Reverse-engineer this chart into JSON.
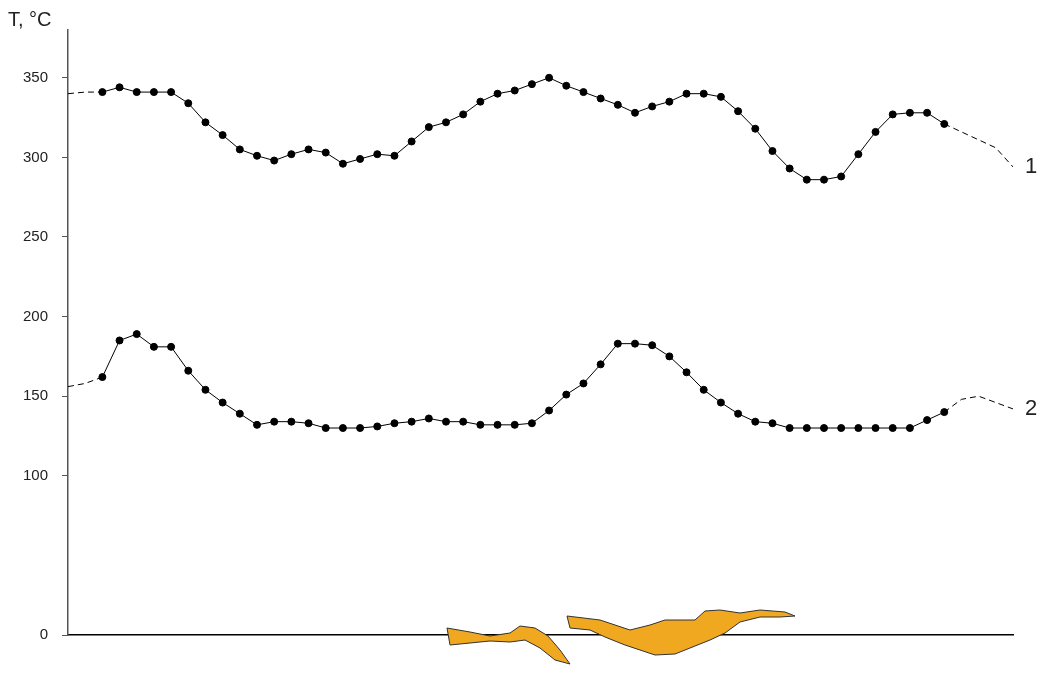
{
  "chart_data": {
    "type": "line",
    "ylabel": "T, °C",
    "categories": [
      null,
      null,
      null,
      null,
      null,
      null,
      null,
      null,
      null,
      null,
      null,
      null,
      null,
      null,
      null,
      null,
      null,
      null,
      null,
      null,
      null,
      null,
      null,
      null,
      null,
      null,
      null,
      null,
      null,
      null,
      null,
      null,
      null,
      null,
      null,
      null,
      null,
      null,
      null,
      null,
      null,
      null,
      null,
      null,
      null,
      null,
      null,
      null,
      null,
      null,
      null,
      null,
      null,
      null,
      null,
      null
    ],
    "ylim": [
      0,
      380
    ],
    "yticks": [
      0,
      100,
      150,
      200,
      250,
      300,
      350
    ],
    "tick_labels": "y",
    "grid": false,
    "legend": "right",
    "marker": "circle",
    "series": [
      {
        "name": "1",
        "color": "#000000",
        "values": [
          null,
          null,
          341,
          344,
          341,
          341,
          341,
          334,
          322,
          314,
          305,
          301,
          298,
          302,
          305,
          303,
          296,
          299,
          302,
          301,
          310,
          319,
          322,
          327,
          335,
          340,
          342,
          346,
          350,
          345,
          341,
          337,
          333,
          328,
          332,
          335,
          340,
          340,
          338,
          329,
          318,
          304,
          293,
          286,
          286,
          288,
          302,
          316,
          327,
          328,
          328,
          321,
          null,
          null,
          null,
          null
        ]
      },
      {
        "color": "#000000",
        "line_style": "dashed",
        "marker": "none",
        "values": [
          340,
          341,
          341,
          null,
          null,
          null,
          null,
          null,
          null,
          null,
          null,
          null,
          null,
          null,
          null,
          null,
          null,
          null,
          null,
          null,
          null,
          null,
          null,
          null,
          null,
          null,
          null,
          null,
          null,
          null,
          null,
          null,
          null,
          null,
          null,
          null,
          null,
          null,
          null,
          null,
          null,
          null,
          null,
          null,
          null,
          null,
          null,
          null,
          null,
          null,
          null,
          null,
          null,
          null,
          null,
          null
        ]
      },
      {
        "color": "#000000",
        "line_style": "dashed",
        "marker": "none",
        "values": [
          null,
          null,
          null,
          null,
          null,
          null,
          null,
          null,
          null,
          null,
          null,
          null,
          null,
          null,
          null,
          null,
          null,
          null,
          null,
          null,
          null,
          null,
          null,
          null,
          null,
          null,
          null,
          null,
          null,
          null,
          null,
          null,
          null,
          null,
          null,
          null,
          null,
          null,
          null,
          null,
          null,
          null,
          null,
          null,
          null,
          null,
          null,
          null,
          null,
          null,
          null,
          321,
          null,
          null,
          306,
          294
        ]
      },
      {
        "name": "2",
        "color": "#000000",
        "values": [
          null,
          null,
          162,
          185,
          189,
          181,
          181,
          166,
          154,
          146,
          139,
          132,
          134,
          134,
          133,
          130,
          130,
          130,
          131,
          133,
          134,
          136,
          134,
          134,
          132,
          132,
          132,
          133,
          141,
          151,
          158,
          170,
          183,
          183,
          182,
          175,
          165,
          154,
          146,
          139,
          134,
          133,
          130,
          130,
          130,
          130,
          130,
          130,
          130,
          130,
          135,
          140,
          null,
          null,
          null,
          null
        ]
      },
      {
        "color": "#000000",
        "line_style": "dashed",
        "marker": "none",
        "values": [
          156,
          158,
          162,
          null,
          null,
          null,
          null,
          null,
          null,
          null,
          null,
          null,
          null,
          null,
          null,
          null,
          null,
          null,
          null,
          null,
          null,
          null,
          null,
          null,
          null,
          null,
          null,
          null,
          null,
          null,
          null,
          null,
          null,
          null,
          null,
          null,
          null,
          null,
          null,
          null,
          null,
          null,
          null,
          null,
          null,
          null,
          null,
          null,
          null,
          null,
          null,
          null,
          null,
          null,
          null,
          null
        ]
      },
      {
        "color": "#000000",
        "line_style": "dashed",
        "marker": "none",
        "values": [
          null,
          null,
          null,
          null,
          null,
          null,
          null,
          null,
          null,
          null,
          null,
          null,
          null,
          null,
          null,
          null,
          null,
          null,
          null,
          null,
          null,
          null,
          null,
          null,
          null,
          null,
          null,
          null,
          null,
          null,
          null,
          null,
          null,
          null,
          null,
          null,
          null,
          null,
          null,
          null,
          null,
          null,
          null,
          null,
          null,
          null,
          null,
          null,
          null,
          null,
          null,
          140,
          148,
          150,
          null,
          142
        ]
      }
    ]
  }
}
